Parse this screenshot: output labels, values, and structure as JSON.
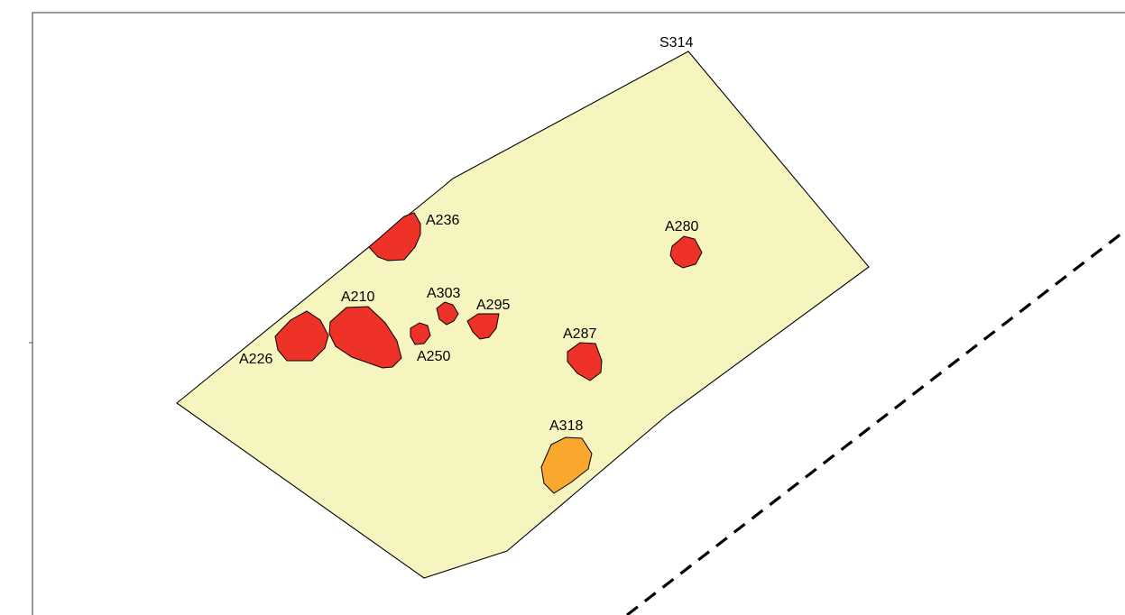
{
  "colors": {
    "background": "#ffffff",
    "frame": "#555555",
    "trench_fill": "#f7f5bf",
    "outline": "#000000",
    "feature_red": "#ef3227",
    "feature_orange": "#f9a72d",
    "dashed_line": "#000000"
  },
  "trench": {
    "label": "S314"
  },
  "features": [
    {
      "label": "A236",
      "fill_key": "feature_red"
    },
    {
      "label": "A280",
      "fill_key": "feature_red"
    },
    {
      "label": "A303",
      "fill_key": "feature_red"
    },
    {
      "label": "A295",
      "fill_key": "feature_red"
    },
    {
      "label": "A210",
      "fill_key": "feature_red"
    },
    {
      "label": "A226",
      "fill_key": "feature_red"
    },
    {
      "label": "A250",
      "fill_key": "feature_red"
    },
    {
      "label": "A287",
      "fill_key": "feature_red"
    },
    {
      "label": "A318",
      "fill_key": "feature_orange"
    }
  ]
}
